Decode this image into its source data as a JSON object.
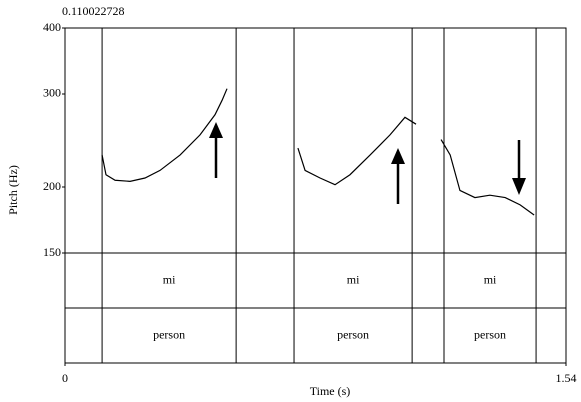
{
  "chart_data": {
    "type": "line",
    "cursor_label": "0.110022728",
    "xlabel": "Time (s)",
    "ylabel": "Pitch (Hz)",
    "xlim": [
      0,
      1.54
    ],
    "xticks": [
      0,
      1.54
    ],
    "ylim": [
      150,
      400
    ],
    "yticks": [
      150,
      200,
      300,
      400
    ],
    "log_y": true,
    "x": [
      0.114,
      0.126,
      0.154,
      0.2,
      0.246,
      0.292,
      0.354,
      0.415,
      0.461,
      0.483,
      0.498,
      null,
      0.716,
      0.738,
      0.784,
      0.83,
      0.876,
      0.938,
      0.999,
      1.045,
      1.079,
      null,
      1.156,
      1.184,
      1.214,
      1.26,
      1.306,
      1.353,
      1.399,
      1.442
    ],
    "series": [
      {
        "color": "#000000",
        "values": [
          230,
          211,
          206,
          205,
          208,
          215,
          230,
          251,
          274,
          292,
          307,
          null,
          237,
          215,
          208,
          202,
          211,
          230,
          251,
          271,
          263,
          null,
          246,
          230,
          197,
          191,
          193,
          191,
          185,
          177
        ]
      }
    ],
    "tiers": [
      {
        "intervals": [
          {
            "start": 0.114,
            "end": 0.526,
            "text": "mi"
          },
          {
            "start": 0.704,
            "end": 1.067,
            "text": "mi"
          },
          {
            "start": 1.165,
            "end": 1.448,
            "text": "mi"
          }
        ]
      },
      {
        "intervals": [
          {
            "start": 0.114,
            "end": 0.526,
            "text": "person"
          },
          {
            "start": 0.704,
            "end": 1.067,
            "text": "person"
          },
          {
            "start": 1.165,
            "end": 1.448,
            "text": "person"
          }
        ]
      }
    ]
  }
}
